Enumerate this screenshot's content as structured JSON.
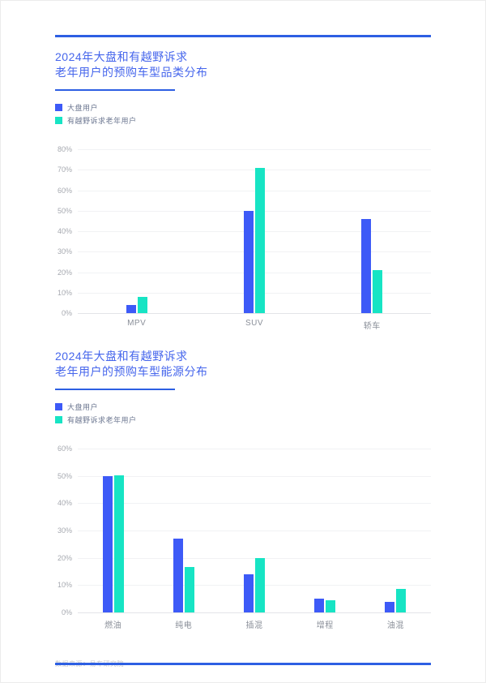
{
  "page": {
    "source_note": "数据来源：易车研究院",
    "colors": {
      "accent_blue": "#3d5af7",
      "accent_teal": "#17e4c4",
      "title_blue": "#4666ec",
      "rule_blue": "#2d5fe3"
    }
  },
  "sections": [
    {
      "title_line1": "2024年大盘和有越野诉求",
      "title_line2": "老年用户的预购车型品类分布"
    },
    {
      "title_line1": "2024年大盘和有越野诉求",
      "title_line2": "老年用户的预购车型能源分布"
    }
  ],
  "chart_data": [
    {
      "type": "bar",
      "title": "2024年大盘和有越野诉求老年用户的预购车型品类分布",
      "categories": [
        "MPV",
        "SUV",
        "轿车"
      ],
      "series": [
        {
          "name": "大盘用户",
          "color": "#3d5af7",
          "values": [
            4,
            50,
            46
          ]
        },
        {
          "name": "有越野诉求老年用户",
          "color": "#17e4c4",
          "values": [
            8,
            71,
            21
          ]
        }
      ],
      "xlabel": "",
      "ylabel": "",
      "ylim": [
        0,
        80
      ],
      "ytick_step": 10,
      "ytick_suffix": "%",
      "grid": true,
      "legend_position": "top-left"
    },
    {
      "type": "bar",
      "title": "2024年大盘和有越野诉求老年用户的预购车型能源分布",
      "categories": [
        "燃油",
        "纯电",
        "插混",
        "增程",
        "油混"
      ],
      "series": [
        {
          "name": "大盘用户",
          "color": "#3d5af7",
          "values": [
            50,
            27,
            14,
            5,
            4
          ]
        },
        {
          "name": "有越野诉求老年用户",
          "color": "#17e4c4",
          "values": [
            50.3,
            16.5,
            20,
            4.5,
            8.5
          ]
        }
      ],
      "xlabel": "",
      "ylabel": "",
      "ylim": [
        0,
        60
      ],
      "ytick_step": 10,
      "ytick_suffix": "%",
      "grid": true,
      "legend_position": "top-left"
    }
  ]
}
